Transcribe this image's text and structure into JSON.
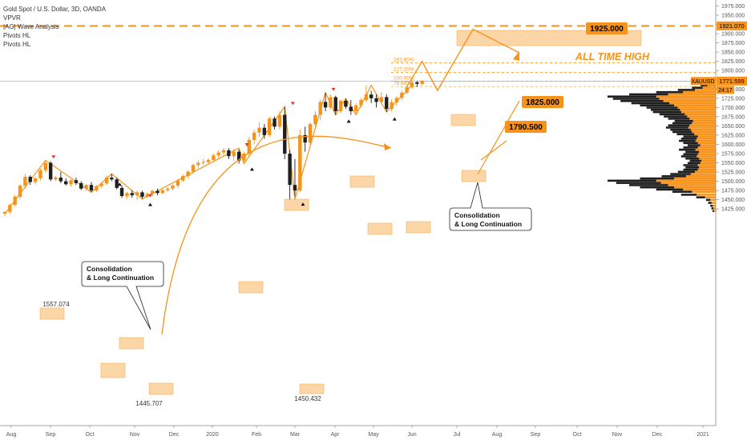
{
  "legend": {
    "title": "Gold Spot / U.S. Dollar, 3D, OANDA",
    "line2": "VPVR",
    "line3": "|AG| Wave Analysis",
    "line4": "Pivots HL",
    "line5": "Pivots HL"
  },
  "price_axis": {
    "ticks": [
      "1975.000",
      "1950.000",
      "1925.000",
      "1900.000",
      "1875.000",
      "1850.000",
      "1825.000",
      "1800.000",
      "1775.000",
      "1750.000",
      "1725.000",
      "1700.000",
      "1675.000",
      "1650.000",
      "1625.000",
      "1600.000",
      "1575.000",
      "1550.000",
      "1525.000",
      "1500.000",
      "1475.000",
      "1450.000",
      "1425.000"
    ],
    "ath_label": "1921.070",
    "symbol_label": "XAUUSD",
    "last_price_label": "1771.599",
    "countdown": "24:17"
  },
  "time_axis": {
    "ticks": [
      "Aug",
      "Sep",
      "Oct",
      "Nov",
      "Dec",
      "2020",
      "Feb",
      "Mar",
      "Apr",
      "May",
      "Jun",
      "Jul",
      "Aug",
      "Sep",
      "Oct",
      "Nov",
      "Dec",
      "2021"
    ]
  },
  "annotations": {
    "ath_text": "ALL TIME HIGH",
    "target_1925": "1925.000",
    "target_1825": "1825.000",
    "target_1790": "1790.500",
    "fib_1618": "161.80%",
    "fib_1272": "127.20%",
    "fib_100": "100.00%",
    "fib_786": "78.60%",
    "callout_left_line1": "Consolidation",
    "callout_left_line2": "& Long Continuation",
    "callout_right_line1": "Consolidation",
    "callout_right_line2": "& Long Continuation",
    "pivot_high_1": "1557.074",
    "pivot_low_1": "1445.707",
    "pivot_low_2": "1450.432"
  },
  "colors": {
    "up": "#f7931a",
    "down": "#1f1f1f",
    "accent": "#f7931a",
    "box_fill": "#fbc98a",
    "axis_text": "#555555"
  },
  "chart_data": {
    "type": "candlestick",
    "title": "Gold Spot / U.S. Dollar, 3D, OANDA",
    "ylim": [
      1410,
      1985
    ],
    "y_scale": "linear",
    "grid": false,
    "candles": [
      {
        "o": 1412,
        "h": 1418,
        "l": 1405,
        "c": 1417
      },
      {
        "o": 1417,
        "h": 1440,
        "l": 1412,
        "c": 1436
      },
      {
        "o": 1436,
        "h": 1462,
        "l": 1430,
        "c": 1458
      },
      {
        "o": 1458,
        "h": 1492,
        "l": 1452,
        "c": 1488
      },
      {
        "o": 1488,
        "h": 1520,
        "l": 1480,
        "c": 1512
      },
      {
        "o": 1512,
        "h": 1516,
        "l": 1490,
        "c": 1498
      },
      {
        "o": 1498,
        "h": 1512,
        "l": 1492,
        "c": 1508
      },
      {
        "o": 1508,
        "h": 1535,
        "l": 1502,
        "c": 1530
      },
      {
        "o": 1530,
        "h": 1557,
        "l": 1524,
        "c": 1550
      },
      {
        "o": 1550,
        "h": 1554,
        "l": 1500,
        "c": 1505
      },
      {
        "o": 1505,
        "h": 1515,
        "l": 1500,
        "c": 1510
      },
      {
        "o": 1510,
        "h": 1525,
        "l": 1495,
        "c": 1500
      },
      {
        "o": 1500,
        "h": 1508,
        "l": 1488,
        "c": 1492
      },
      {
        "o": 1492,
        "h": 1505,
        "l": 1485,
        "c": 1503
      },
      {
        "o": 1503,
        "h": 1510,
        "l": 1490,
        "c": 1495
      },
      {
        "o": 1495,
        "h": 1500,
        "l": 1476,
        "c": 1480
      },
      {
        "o": 1480,
        "h": 1492,
        "l": 1474,
        "c": 1490
      },
      {
        "o": 1490,
        "h": 1498,
        "l": 1470,
        "c": 1475
      },
      {
        "o": 1475,
        "h": 1490,
        "l": 1470,
        "c": 1487
      },
      {
        "o": 1487,
        "h": 1498,
        "l": 1482,
        "c": 1494
      },
      {
        "o": 1494,
        "h": 1515,
        "l": 1490,
        "c": 1510
      },
      {
        "o": 1510,
        "h": 1520,
        "l": 1500,
        "c": 1505
      },
      {
        "o": 1505,
        "h": 1510,
        "l": 1478,
        "c": 1482
      },
      {
        "o": 1482,
        "h": 1488,
        "l": 1455,
        "c": 1460
      },
      {
        "o": 1460,
        "h": 1472,
        "l": 1452,
        "c": 1468
      },
      {
        "o": 1468,
        "h": 1476,
        "l": 1455,
        "c": 1462
      },
      {
        "o": 1462,
        "h": 1475,
        "l": 1450,
        "c": 1470
      },
      {
        "o": 1470,
        "h": 1474,
        "l": 1452,
        "c": 1458
      },
      {
        "o": 1458,
        "h": 1470,
        "l": 1453,
        "c": 1466
      },
      {
        "o": 1466,
        "h": 1478,
        "l": 1460,
        "c": 1474
      },
      {
        "o": 1474,
        "h": 1480,
        "l": 1462,
        "c": 1468
      },
      {
        "o": 1468,
        "h": 1478,
        "l": 1465,
        "c": 1476
      },
      {
        "o": 1476,
        "h": 1484,
        "l": 1470,
        "c": 1480
      },
      {
        "o": 1480,
        "h": 1492,
        "l": 1475,
        "c": 1488
      },
      {
        "o": 1488,
        "h": 1506,
        "l": 1482,
        "c": 1502
      },
      {
        "o": 1502,
        "h": 1518,
        "l": 1498,
        "c": 1514
      },
      {
        "o": 1514,
        "h": 1530,
        "l": 1508,
        "c": 1526
      },
      {
        "o": 1526,
        "h": 1548,
        "l": 1520,
        "c": 1544
      },
      {
        "o": 1544,
        "h": 1556,
        "l": 1536,
        "c": 1550
      },
      {
        "o": 1550,
        "h": 1560,
        "l": 1544,
        "c": 1552
      },
      {
        "o": 1552,
        "h": 1562,
        "l": 1546,
        "c": 1558
      },
      {
        "o": 1558,
        "h": 1575,
        "l": 1552,
        "c": 1570
      },
      {
        "o": 1570,
        "h": 1584,
        "l": 1562,
        "c": 1578
      },
      {
        "o": 1578,
        "h": 1590,
        "l": 1570,
        "c": 1584
      },
      {
        "o": 1584,
        "h": 1590,
        "l": 1560,
        "c": 1568
      },
      {
        "o": 1568,
        "h": 1588,
        "l": 1555,
        "c": 1580
      },
      {
        "o": 1580,
        "h": 1586,
        "l": 1548,
        "c": 1556
      },
      {
        "o": 1556,
        "h": 1580,
        "l": 1550,
        "c": 1575
      },
      {
        "o": 1575,
        "h": 1620,
        "l": 1568,
        "c": 1612
      },
      {
        "o": 1612,
        "h": 1640,
        "l": 1600,
        "c": 1632
      },
      {
        "o": 1632,
        "h": 1660,
        "l": 1620,
        "c": 1645
      },
      {
        "o": 1645,
        "h": 1655,
        "l": 1615,
        "c": 1625
      },
      {
        "o": 1625,
        "h": 1675,
        "l": 1620,
        "c": 1670
      },
      {
        "o": 1670,
        "h": 1676,
        "l": 1640,
        "c": 1648
      },
      {
        "o": 1648,
        "h": 1690,
        "l": 1640,
        "c": 1680
      },
      {
        "o": 1680,
        "h": 1702,
        "l": 1560,
        "c": 1575
      },
      {
        "o": 1575,
        "h": 1585,
        "l": 1451,
        "c": 1490
      },
      {
        "o": 1490,
        "h": 1560,
        "l": 1460,
        "c": 1475
      },
      {
        "o": 1475,
        "h": 1640,
        "l": 1470,
        "c": 1625
      },
      {
        "o": 1625,
        "h": 1648,
        "l": 1580,
        "c": 1605
      },
      {
        "o": 1605,
        "h": 1660,
        "l": 1598,
        "c": 1655
      },
      {
        "o": 1655,
        "h": 1690,
        "l": 1640,
        "c": 1680
      },
      {
        "o": 1680,
        "h": 1722,
        "l": 1665,
        "c": 1715
      },
      {
        "o": 1715,
        "h": 1740,
        "l": 1690,
        "c": 1700
      },
      {
        "o": 1700,
        "h": 1735,
        "l": 1695,
        "c": 1728
      },
      {
        "o": 1728,
        "h": 1732,
        "l": 1680,
        "c": 1690
      },
      {
        "o": 1690,
        "h": 1722,
        "l": 1684,
        "c": 1718
      },
      {
        "o": 1718,
        "h": 1724,
        "l": 1696,
        "c": 1702
      },
      {
        "o": 1702,
        "h": 1720,
        "l": 1680,
        "c": 1690
      },
      {
        "o": 1690,
        "h": 1712,
        "l": 1684,
        "c": 1706
      },
      {
        "o": 1706,
        "h": 1726,
        "l": 1700,
        "c": 1720
      },
      {
        "o": 1720,
        "h": 1760,
        "l": 1715,
        "c": 1735
      },
      {
        "o": 1735,
        "h": 1745,
        "l": 1712,
        "c": 1725
      },
      {
        "o": 1725,
        "h": 1735,
        "l": 1700,
        "c": 1715
      },
      {
        "o": 1715,
        "h": 1742,
        "l": 1708,
        "c": 1728
      },
      {
        "o": 1728,
        "h": 1736,
        "l": 1688,
        "c": 1696
      },
      {
        "o": 1696,
        "h": 1722,
        "l": 1690,
        "c": 1714
      },
      {
        "o": 1714,
        "h": 1730,
        "l": 1705,
        "c": 1726
      },
      {
        "o": 1726,
        "h": 1745,
        "l": 1720,
        "c": 1740
      },
      {
        "o": 1740,
        "h": 1760,
        "l": 1735,
        "c": 1755
      },
      {
        "o": 1755,
        "h": 1775,
        "l": 1750,
        "c": 1768
      },
      {
        "o": 1768,
        "h": 1772,
        "l": 1755,
        "c": 1764
      },
      {
        "o": 1764,
        "h": 1775,
        "l": 1760,
        "c": 1771.599
      }
    ],
    "volume_profile": [
      {
        "price": 1418,
        "vol": 3
      },
      {
        "price": 1425,
        "vol": 4
      },
      {
        "price": 1432,
        "vol": 5
      },
      {
        "price": 1440,
        "vol": 7
      },
      {
        "price": 1448,
        "vol": 9
      },
      {
        "price": 1455,
        "vol": 18
      },
      {
        "price": 1462,
        "vol": 32
      },
      {
        "price": 1470,
        "vol": 40
      },
      {
        "price": 1476,
        "vol": 55
      },
      {
        "price": 1482,
        "vol": 70
      },
      {
        "price": 1488,
        "vol": 80
      },
      {
        "price": 1494,
        "vol": 92
      },
      {
        "price": 1500,
        "vol": 100
      },
      {
        "price": 1506,
        "vol": 70
      },
      {
        "price": 1512,
        "vol": 50
      },
      {
        "price": 1518,
        "vol": 42
      },
      {
        "price": 1524,
        "vol": 35
      },
      {
        "price": 1530,
        "vol": 30
      },
      {
        "price": 1536,
        "vol": 28
      },
      {
        "price": 1542,
        "vol": 30
      },
      {
        "price": 1548,
        "vol": 26
      },
      {
        "price": 1554,
        "vol": 24
      },
      {
        "price": 1560,
        "vol": 28
      },
      {
        "price": 1566,
        "vol": 32
      },
      {
        "price": 1572,
        "vol": 30
      },
      {
        "price": 1578,
        "vol": 28
      },
      {
        "price": 1584,
        "vol": 34
      },
      {
        "price": 1590,
        "vol": 30
      },
      {
        "price": 1596,
        "vol": 26
      },
      {
        "price": 1602,
        "vol": 30
      },
      {
        "price": 1608,
        "vol": 34
      },
      {
        "price": 1614,
        "vol": 32
      },
      {
        "price": 1620,
        "vol": 30
      },
      {
        "price": 1626,
        "vol": 36
      },
      {
        "price": 1632,
        "vol": 40
      },
      {
        "price": 1638,
        "vol": 42
      },
      {
        "price": 1644,
        "vol": 46
      },
      {
        "price": 1650,
        "vol": 44
      },
      {
        "price": 1656,
        "vol": 40
      },
      {
        "price": 1662,
        "vol": 38
      },
      {
        "price": 1668,
        "vol": 44
      },
      {
        "price": 1674,
        "vol": 48
      },
      {
        "price": 1680,
        "vol": 52
      },
      {
        "price": 1686,
        "vol": 58
      },
      {
        "price": 1692,
        "vol": 60
      },
      {
        "price": 1698,
        "vol": 64
      },
      {
        "price": 1704,
        "vol": 70
      },
      {
        "price": 1710,
        "vol": 78
      },
      {
        "price": 1716,
        "vol": 88
      },
      {
        "price": 1722,
        "vol": 95
      },
      {
        "price": 1728,
        "vol": 100
      },
      {
        "price": 1734,
        "vol": 80
      },
      {
        "price": 1740,
        "vol": 55
      },
      {
        "price": 1746,
        "vol": 35
      },
      {
        "price": 1752,
        "vol": 22
      },
      {
        "price": 1758,
        "vol": 14
      },
      {
        "price": 1764,
        "vol": 10
      },
      {
        "price": 1770,
        "vol": 6
      }
    ],
    "levels": {
      "all_time_high": 1921.07,
      "last_price": 1771.599,
      "fib_1618": 1821,
      "fib_1272": 1795,
      "fib_100": 1771,
      "fib_786": 1757
    },
    "projection": [
      {
        "i": 79,
        "p": 1757
      },
      {
        "i": 82,
        "p": 1825
      },
      {
        "i": 85,
        "p": 1746
      },
      {
        "i": 92,
        "p": 1912
      }
    ]
  }
}
